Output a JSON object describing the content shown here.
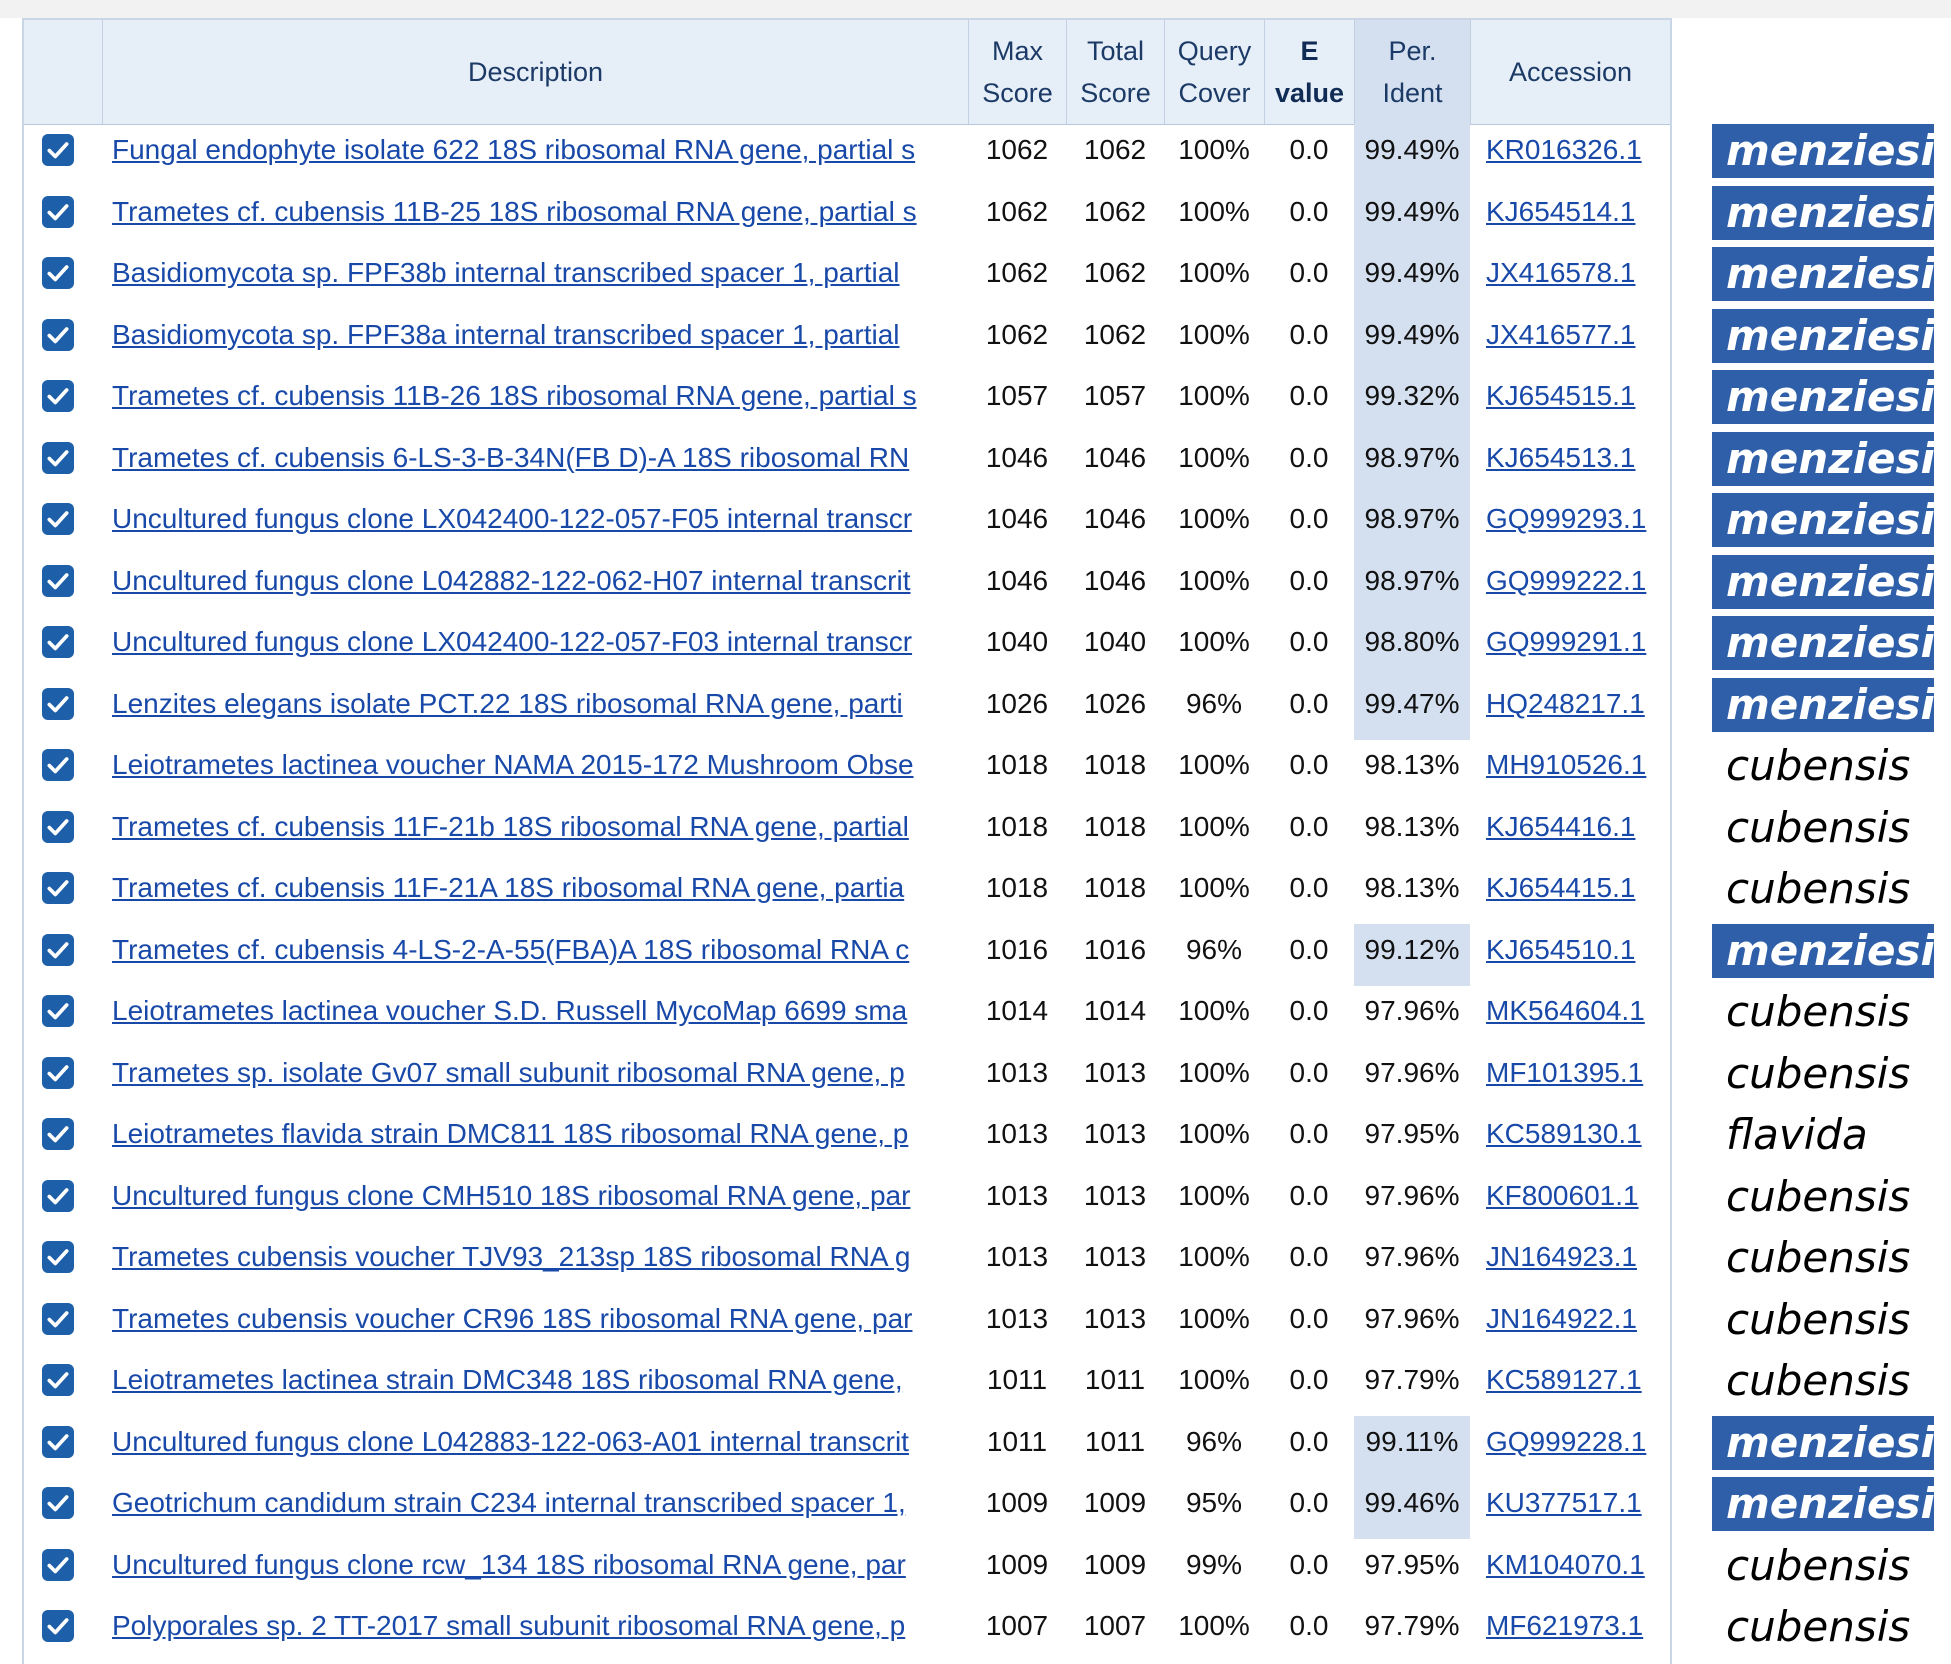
{
  "header": {
    "description": "Description",
    "max_score": [
      "Max",
      "Score"
    ],
    "total_score": [
      "Total",
      "Score"
    ],
    "query_cover": [
      "Query",
      "Cover"
    ],
    "e_value": [
      "E",
      "value"
    ],
    "per_ident": [
      "Per.",
      "Ident"
    ],
    "accession": "Accession"
  },
  "colors": {
    "highlight": "#2e5fa8",
    "link": "#1849a9",
    "checkbox": "#1d5fa8",
    "header_bg": "#e6eef7",
    "ident_highlight": "#d4e0ef"
  },
  "rows": [
    {
      "desc": "Fungal endophyte isolate 622 18S ribosomal RNA gene, partial s",
      "max": "1062",
      "total": "1062",
      "cover": "100%",
      "e": "0.0",
      "ident": "99.49%",
      "acc": "KR016326.1",
      "label": "menziesii",
      "hl": true
    },
    {
      "desc": "Trametes cf. cubensis 11B-25 18S ribosomal RNA gene, partial s",
      "max": "1062",
      "total": "1062",
      "cover": "100%",
      "e": "0.0",
      "ident": "99.49%",
      "acc": "KJ654514.1",
      "label": "menziesii",
      "hl": true
    },
    {
      "desc": "Basidiomycota sp. FPF38b internal transcribed spacer 1, partial",
      "max": "1062",
      "total": "1062",
      "cover": "100%",
      "e": "0.0",
      "ident": "99.49%",
      "acc": "JX416578.1",
      "label": "menziesii",
      "hl": true
    },
    {
      "desc": "Basidiomycota sp. FPF38a internal transcribed spacer 1, partial",
      "max": "1062",
      "total": "1062",
      "cover": "100%",
      "e": "0.0",
      "ident": "99.49%",
      "acc": "JX416577.1",
      "label": "menziesii",
      "hl": true
    },
    {
      "desc": "Trametes cf. cubensis 11B-26 18S ribosomal RNA gene, partial s",
      "max": "1057",
      "total": "1057",
      "cover": "100%",
      "e": "0.0",
      "ident": "99.32%",
      "acc": "KJ654515.1",
      "label": "menziesii",
      "hl": true
    },
    {
      "desc": "Trametes cf. cubensis 6-LS-3-B-34N(FB D)-A 18S ribosomal RN",
      "max": "1046",
      "total": "1046",
      "cover": "100%",
      "e": "0.0",
      "ident": "98.97%",
      "acc": "KJ654513.1",
      "label": "menziesii",
      "hl": true
    },
    {
      "desc": "Uncultured fungus clone LX042400-122-057-F05 internal transcr",
      "max": "1046",
      "total": "1046",
      "cover": "100%",
      "e": "0.0",
      "ident": "98.97%",
      "acc": "GQ999293.1",
      "label": "menziesii",
      "hl": true
    },
    {
      "desc": "Uncultured fungus clone L042882-122-062-H07 internal transcrit",
      "max": "1046",
      "total": "1046",
      "cover": "100%",
      "e": "0.0",
      "ident": "98.97%",
      "acc": "GQ999222.1",
      "label": "menziesii",
      "hl": true
    },
    {
      "desc": "Uncultured fungus clone LX042400-122-057-F03 internal transcr",
      "max": "1040",
      "total": "1040",
      "cover": "100%",
      "e": "0.0",
      "ident": "98.80%",
      "acc": "GQ999291.1",
      "label": "menziesii",
      "hl": true
    },
    {
      "desc": "Lenzites elegans isolate PCT.22 18S ribosomal RNA gene, parti",
      "max": "1026",
      "total": "1026",
      "cover": "96%",
      "e": "0.0",
      "ident": "99.47%",
      "acc": "HQ248217.1",
      "label": "menziesii",
      "hl": true
    },
    {
      "desc": "Leiotrametes lactinea voucher NAMA 2015-172 Mushroom Obse",
      "max": "1018",
      "total": "1018",
      "cover": "100%",
      "e": "0.0",
      "ident": "98.13%",
      "acc": "MH910526.1",
      "label": "cubensis",
      "hl": false
    },
    {
      "desc": "Trametes cf. cubensis 11F-21b 18S ribosomal RNA gene, partial",
      "max": "1018",
      "total": "1018",
      "cover": "100%",
      "e": "0.0",
      "ident": "98.13%",
      "acc": "KJ654416.1",
      "label": "cubensis",
      "hl": false
    },
    {
      "desc": "Trametes cf. cubensis 11F-21A 18S ribosomal RNA gene, partia",
      "max": "1018",
      "total": "1018",
      "cover": "100%",
      "e": "0.0",
      "ident": "98.13%",
      "acc": "KJ654415.1",
      "label": "cubensis",
      "hl": false
    },
    {
      "desc": "Trametes cf. cubensis 4-LS-2-A-55(FBA)A 18S ribosomal RNA c",
      "max": "1016",
      "total": "1016",
      "cover": "96%",
      "e": "0.0",
      "ident": "99.12%",
      "acc": "KJ654510.1",
      "label": "menziesii",
      "hl": true
    },
    {
      "desc": "Leiotrametes lactinea voucher S.D. Russell MycoMap 6699 sma",
      "max": "1014",
      "total": "1014",
      "cover": "100%",
      "e": "0.0",
      "ident": "97.96%",
      "acc": "MK564604.1",
      "label": "cubensis",
      "hl": false
    },
    {
      "desc": "Trametes sp. isolate Gv07 small subunit ribosomal RNA gene, p",
      "max": "1013",
      "total": "1013",
      "cover": "100%",
      "e": "0.0",
      "ident": "97.96%",
      "acc": "MF101395.1",
      "label": "cubensis",
      "hl": false
    },
    {
      "desc": "Leiotrametes flavida strain DMC811 18S ribosomal RNA gene, p",
      "max": "1013",
      "total": "1013",
      "cover": "100%",
      "e": "0.0",
      "ident": "97.95%",
      "acc": "KC589130.1",
      "label": "flavida",
      "hl": false
    },
    {
      "desc": "Uncultured fungus clone CMH510 18S ribosomal RNA gene, par",
      "max": "1013",
      "total": "1013",
      "cover": "100%",
      "e": "0.0",
      "ident": "97.96%",
      "acc": "KF800601.1",
      "label": "cubensis",
      "hl": false
    },
    {
      "desc": "Trametes cubensis voucher TJV93_213sp 18S ribosomal RNA g",
      "max": "1013",
      "total": "1013",
      "cover": "100%",
      "e": "0.0",
      "ident": "97.96%",
      "acc": "JN164923.1",
      "label": "cubensis",
      "hl": false
    },
    {
      "desc": "Trametes cubensis voucher CR96 18S ribosomal RNA gene, par",
      "max": "1013",
      "total": "1013",
      "cover": "100%",
      "e": "0.0",
      "ident": "97.96%",
      "acc": "JN164922.1",
      "label": "cubensis",
      "hl": false
    },
    {
      "desc": "Leiotrametes lactinea strain DMC348 18S ribosomal RNA gene,",
      "max": "1011",
      "total": "1011",
      "cover": "100%",
      "e": "0.0",
      "ident": "97.79%",
      "acc": "KC589127.1",
      "label": "cubensis",
      "hl": false
    },
    {
      "desc": "Uncultured fungus clone L042883-122-063-A01 internal transcrit",
      "max": "1011",
      "total": "1011",
      "cover": "96%",
      "e": "0.0",
      "ident": "99.11%",
      "acc": "GQ999228.1",
      "label": "menziesii",
      "hl": true
    },
    {
      "desc": "Geotrichum candidum strain C234 internal transcribed spacer 1,",
      "max": "1009",
      "total": "1009",
      "cover": "95%",
      "e": "0.0",
      "ident": "99.46%",
      "acc": "KU377517.1",
      "label": "menziesii",
      "hl": true
    },
    {
      "desc": "Uncultured fungus clone rcw_134 18S ribosomal RNA gene, par",
      "max": "1009",
      "total": "1009",
      "cover": "99%",
      "e": "0.0",
      "ident": "97.95%",
      "acc": "KM104070.1",
      "label": "cubensis",
      "hl": false
    },
    {
      "desc": "Polyporales sp. 2 TT-2017 small subunit ribosomal RNA gene, p",
      "max": "1007",
      "total": "1007",
      "cover": "100%",
      "e": "0.0",
      "ident": "97.79%",
      "acc": "MF621973.1",
      "label": "cubensis",
      "hl": false
    }
  ]
}
